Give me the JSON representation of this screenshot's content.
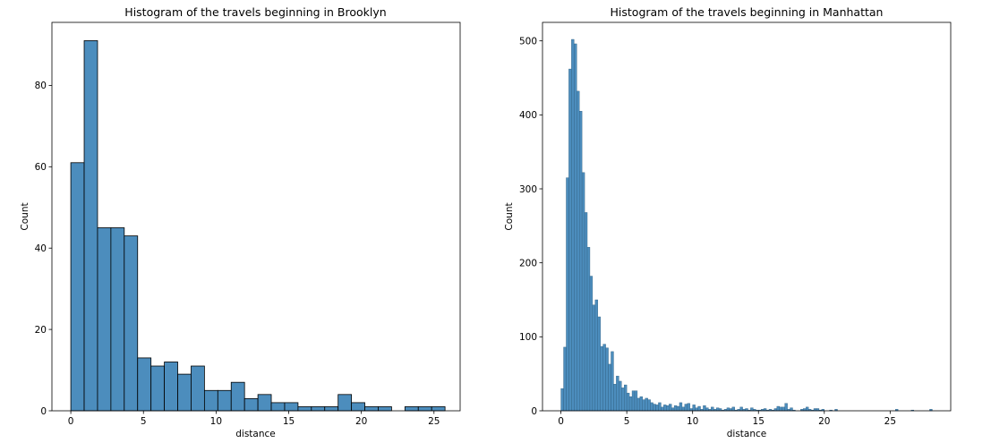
{
  "chart_data": [
    {
      "type": "bar",
      "title": "Histogram of the travels beginning in Brooklyn",
      "xlabel": "distance",
      "ylabel": "Count",
      "xlim": [
        -1.3,
        26.8
      ],
      "ylim": [
        0,
        95.5
      ],
      "xticks": [
        0,
        5,
        10,
        15,
        20,
        25
      ],
      "yticks": [
        0,
        20,
        40,
        60,
        80
      ],
      "bar_color": "#4c8dbd",
      "edge_color": "#000000",
      "bins": [
        {
          "x0": 0.0,
          "x1": 0.92,
          "count": 61
        },
        {
          "x0": 0.92,
          "x1": 1.84,
          "count": 91
        },
        {
          "x0": 1.84,
          "x1": 2.76,
          "count": 45
        },
        {
          "x0": 2.76,
          "x1": 3.68,
          "count": 45
        },
        {
          "x0": 3.68,
          "x1": 4.6,
          "count": 43
        },
        {
          "x0": 4.6,
          "x1": 5.52,
          "count": 13
        },
        {
          "x0": 5.52,
          "x1": 6.44,
          "count": 11
        },
        {
          "x0": 6.44,
          "x1": 7.36,
          "count": 12
        },
        {
          "x0": 7.36,
          "x1": 8.28,
          "count": 9
        },
        {
          "x0": 8.28,
          "x1": 9.2,
          "count": 11
        },
        {
          "x0": 9.2,
          "x1": 10.12,
          "count": 5
        },
        {
          "x0": 10.12,
          "x1": 11.04,
          "count": 5
        },
        {
          "x0": 11.04,
          "x1": 11.96,
          "count": 7
        },
        {
          "x0": 11.96,
          "x1": 12.88,
          "count": 3
        },
        {
          "x0": 12.88,
          "x1": 13.8,
          "count": 4
        },
        {
          "x0": 13.8,
          "x1": 14.72,
          "count": 2
        },
        {
          "x0": 14.72,
          "x1": 15.64,
          "count": 2
        },
        {
          "x0": 15.64,
          "x1": 16.56,
          "count": 1
        },
        {
          "x0": 16.56,
          "x1": 17.48,
          "count": 1
        },
        {
          "x0": 17.48,
          "x1": 18.4,
          "count": 1
        },
        {
          "x0": 18.4,
          "x1": 19.32,
          "count": 4
        },
        {
          "x0": 19.32,
          "x1": 20.24,
          "count": 2
        },
        {
          "x0": 20.24,
          "x1": 21.16,
          "count": 1
        },
        {
          "x0": 21.16,
          "x1": 22.08,
          "count": 1
        },
        {
          "x0": 22.08,
          "x1": 23.0,
          "count": 0
        },
        {
          "x0": 23.0,
          "x1": 23.92,
          "count": 1
        },
        {
          "x0": 23.92,
          "x1": 24.84,
          "count": 1
        },
        {
          "x0": 24.84,
          "x1": 25.76,
          "count": 1
        }
      ]
    },
    {
      "type": "bar",
      "title": "Histogram of the travels beginning in Manhattan",
      "xlabel": "distance",
      "ylabel": "Count",
      "xlim": [
        -1.4,
        29.6
      ],
      "ylim": [
        0,
        525
      ],
      "xticks": [
        0,
        5,
        10,
        15,
        20,
        25
      ],
      "yticks": [
        0,
        100,
        200,
        300,
        400,
        500
      ],
      "bar_color": "#4c8dbd",
      "edge_color": "#2f5f80",
      "bin_start": 0.0,
      "bin_width": 0.2,
      "counts": [
        30,
        86,
        315,
        462,
        502,
        496,
        432,
        405,
        322,
        268,
        221,
        182,
        143,
        150,
        127,
        87,
        90,
        85,
        63,
        80,
        36,
        47,
        40,
        31,
        35,
        24,
        19,
        27,
        27,
        17,
        19,
        15,
        17,
        15,
        11,
        9,
        8,
        11,
        5,
        8,
        7,
        9,
        4,
        7,
        6,
        11,
        5,
        9,
        10,
        3,
        8,
        4,
        6,
        2,
        7,
        4,
        2,
        5,
        2,
        4,
        3,
        1,
        2,
        4,
        3,
        5,
        1,
        2,
        5,
        2,
        3,
        1,
        4,
        2,
        1,
        1,
        2,
        3,
        1,
        2,
        1,
        3,
        6,
        5,
        5,
        10,
        2,
        4,
        1,
        0,
        0,
        2,
        3,
        5,
        2,
        1,
        3,
        3,
        1,
        2,
        0,
        0,
        1,
        0,
        2,
        0,
        0,
        0,
        0,
        0,
        0,
        0,
        0,
        0,
        0,
        0,
        0,
        0,
        0,
        0,
        0,
        0,
        0,
        0,
        0,
        0,
        0,
        2,
        0,
        0,
        0,
        0,
        0,
        1,
        0,
        0,
        0,
        0,
        0,
        0,
        2
      ]
    }
  ]
}
